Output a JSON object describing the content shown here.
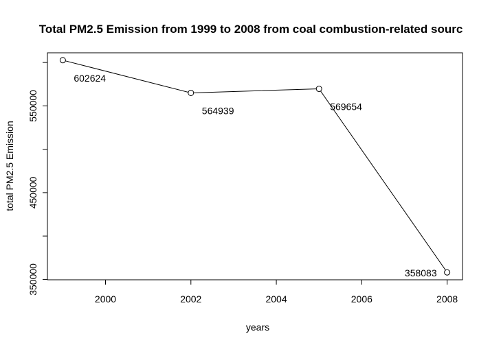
{
  "chart_data": {
    "type": "line",
    "title": "Total PM2.5 Emission from 1999 to 2008 from coal combustion-related sourc",
    "xlabel": "years",
    "ylabel": "total PM2.5 Emission",
    "x": [
      1999,
      2002,
      2005,
      2008
    ],
    "values": [
      602624,
      564939,
      569654,
      358083
    ],
    "data_labels": [
      "602624",
      "564939",
      "569654",
      "358083"
    ],
    "x_ticks": [
      2000,
      2002,
      2004,
      2006,
      2008
    ],
    "x_tick_labels": [
      "2000",
      "2002",
      "2004",
      "2006",
      "2008"
    ],
    "y_ticks": [
      350000,
      400000,
      450000,
      500000,
      550000,
      600000
    ],
    "y_tick_labels": [
      "350000",
      "",
      "450000",
      "",
      "550000",
      ""
    ],
    "xlim": [
      1998.64,
      2008.36
    ],
    "ylim": [
      349538,
      611169
    ],
    "marker": "open-circle",
    "grid": false,
    "line_color": "#000000"
  }
}
